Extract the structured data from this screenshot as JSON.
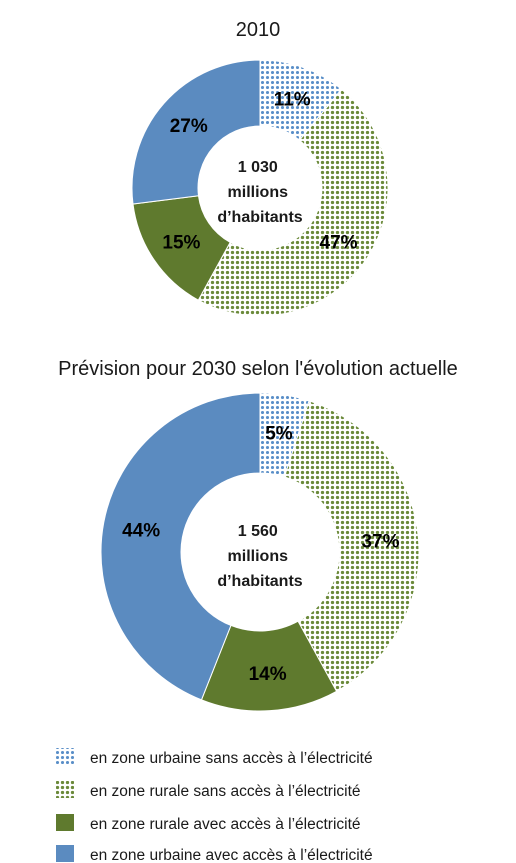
{
  "colors": {
    "urban_no_access": "#5a8fc8",
    "rural_no_access": "#6b8a3a",
    "rural_access": "#5f7a2e",
    "urban_access": "#5b8bc0"
  },
  "legend": [
    {
      "label": "en zone urbaine sans accès à l’électricité",
      "color": "#5a8fc8",
      "pattern": "dots-blue"
    },
    {
      "label": "en zone rurale sans accès à l’électricité",
      "color": "#6b8a3a",
      "pattern": "dots-green"
    },
    {
      "label": "en zone rurale avec accès à l’électricité",
      "color": "#5f7a2e",
      "pattern": "solid-green"
    },
    {
      "label": "en zone urbaine avec accès à l’électricité",
      "color": "#5b8bc0",
      "pattern": "solid-blue"
    }
  ],
  "chart_data": [
    {
      "type": "pie",
      "title": "2010",
      "center_label": [
        "1 030",
        "millions",
        "d’habitants"
      ],
      "categories": [
        "en zone urbaine sans accès à l’électricité",
        "en zone rurale sans accès à l’électricité",
        "en zone rurale avec accès à l’électricité",
        "en zone urbaine avec accès à l’électricité"
      ],
      "values": [
        11,
        47,
        15,
        27
      ],
      "labels": [
        "11%",
        "47%",
        "15%",
        "27%"
      ]
    },
    {
      "type": "pie",
      "title": "Prévision pour 2030 selon l'évolution actuelle",
      "center_label": [
        "1 560",
        "millions",
        "d’habitants"
      ],
      "categories": [
        "en zone urbaine sans accès à l’électricité",
        "en zone rurale sans accès à l’électricité",
        "en zone rurale avec accès à l’électricité",
        "en zone urbaine avec accès à l’électricité"
      ],
      "values": [
        5,
        37,
        14,
        44
      ],
      "labels": [
        "5%",
        "37%",
        "14%",
        "44%"
      ]
    }
  ]
}
